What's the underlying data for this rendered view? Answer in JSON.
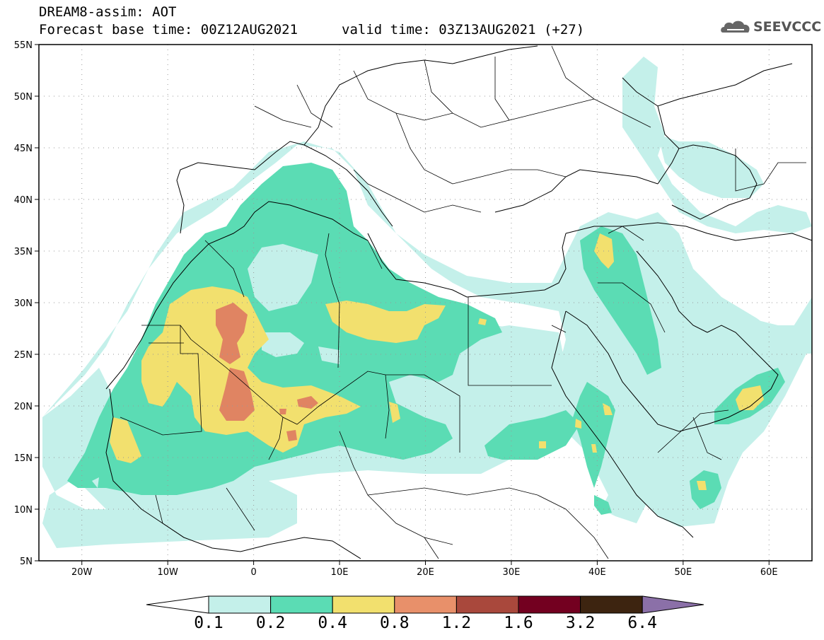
{
  "header": {
    "title": "DREAM8-assim: AOT",
    "base_time": "Forecast base time: 00Z12AUG2021",
    "valid_time": "valid time: 03Z13AUG2021 (+27)"
  },
  "logo": {
    "text": "SEEVCCC",
    "icon": "cloud-icon"
  },
  "map": {
    "projection": "lat-lon",
    "lon_range": [
      -25,
      65
    ],
    "lat_range": [
      5,
      55
    ],
    "lat_ticks": [
      {
        "value": 55,
        "label": "55N"
      },
      {
        "value": 50,
        "label": "50N"
      },
      {
        "value": 45,
        "label": "45N"
      },
      {
        "value": 40,
        "label": "40N"
      },
      {
        "value": 35,
        "label": "35N"
      },
      {
        "value": 30,
        "label": "30N"
      },
      {
        "value": 25,
        "label": "25N"
      },
      {
        "value": 20,
        "label": "20N"
      },
      {
        "value": 15,
        "label": "15N"
      },
      {
        "value": 10,
        "label": "10N"
      },
      {
        "value": 5,
        "label": "5N"
      }
    ],
    "lon_ticks": [
      {
        "value": -20,
        "label": "20W"
      },
      {
        "value": -10,
        "label": "10W"
      },
      {
        "value": 0,
        "label": "0"
      },
      {
        "value": 10,
        "label": "10E"
      },
      {
        "value": 20,
        "label": "20E"
      },
      {
        "value": 30,
        "label": "30E"
      },
      {
        "value": 40,
        "label": "40E"
      },
      {
        "value": 50,
        "label": "50E"
      },
      {
        "value": 60,
        "label": "60E"
      }
    ],
    "grid": "dotted"
  },
  "colorbar": {
    "levels": [
      "0.1",
      "0.2",
      "0.4",
      "0.8",
      "1.2",
      "1.6",
      "3.2",
      "6.4"
    ],
    "colors": [
      "#ffffff",
      "#c4f0ea",
      "#5bdcb4",
      "#f2e06e",
      "#e8906a",
      "#a9483c",
      "#730020",
      "#3d2410",
      "#8b70a8"
    ]
  },
  "colors": {
    "aot_0_1": "#c4f0ea",
    "aot_0_2": "#5bdcb4",
    "aot_0_4": "#f2e06e",
    "aot_0_8": "#e08462"
  }
}
